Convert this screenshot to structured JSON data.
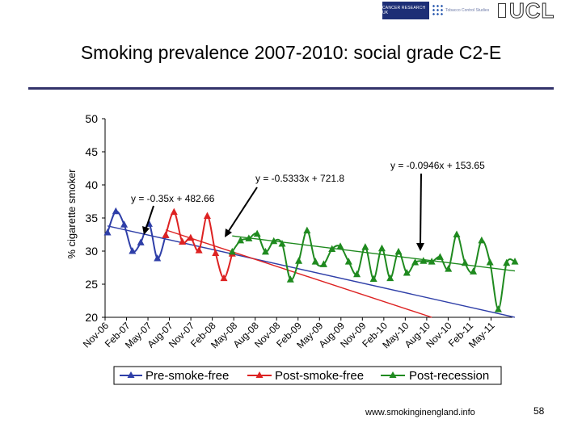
{
  "header": {
    "logos": [
      {
        "name": "cancer-research-uk-logo",
        "text": "CANCER RESEARCH UK"
      },
      {
        "name": "tobacco-control-studies-logo",
        "text": "Tobacco Control Studies"
      },
      {
        "name": "ucl-logo",
        "text": "UCL"
      }
    ],
    "title": "Smoking prevalence 2007-2010: social grade C2-E",
    "rule_color": "#33336b"
  },
  "footer": {
    "url": "www.smokinginengland.info",
    "page_number": "58"
  },
  "colors": {
    "pre": "#2f3fa8",
    "post": "#dd2222",
    "recession": "#1f8a1f"
  },
  "chart_data": {
    "type": "line",
    "ylabel": "% cigarette smoker",
    "xlabel": "",
    "ylim": [
      20,
      50
    ],
    "yticks": [
      20,
      25,
      30,
      35,
      40,
      45,
      50
    ],
    "grid": false,
    "legend_position": "bottom",
    "x_tick_labels": [
      "Nov-06",
      "Feb-07",
      "May-07",
      "Aug-07",
      "Nov-07",
      "Feb-08",
      "May-08",
      "Aug-08",
      "Nov-08",
      "Feb-09",
      "May-09",
      "Aug-09",
      "Nov-09",
      "Feb-10",
      "May-10",
      "Aug-10",
      "Nov-10",
      "Feb-11",
      "May-11"
    ],
    "series": [
      {
        "name": "Pre-smoke-free",
        "key": "pre",
        "start_index": 0,
        "values": [
          32.8,
          36.0,
          34.0,
          30.0,
          31.3,
          34.1,
          28.9,
          32.4
        ]
      },
      {
        "name": "Post-smoke-free",
        "key": "post",
        "start_index": 7,
        "values": [
          32.4,
          35.9,
          31.4,
          32.0,
          30.1,
          35.3,
          29.7,
          25.9,
          29.6
        ]
      },
      {
        "name": "Post-recession",
        "key": "recession",
        "start_index": 15,
        "values": [
          29.9,
          31.6,
          31.9,
          32.6,
          29.9,
          31.5,
          31.1,
          25.7,
          28.5,
          33.1,
          28.4,
          28.0,
          30.3,
          30.7,
          28.4,
          26.5,
          30.6,
          25.8,
          30.4,
          25.9,
          29.9,
          26.7,
          28.3,
          28.5,
          28.4,
          29.1,
          27.3,
          32.5,
          28.2,
          26.9,
          31.6,
          28.3,
          21.2,
          28.2,
          28.4
        ]
      }
    ],
    "trendlines": [
      {
        "key": "pre",
        "label": "y = -0.35x + 482.66",
        "y_start": 33.8,
        "y_end": 20.0,
        "x_start_index": 0,
        "x_end_index": 49
      },
      {
        "key": "post",
        "label": "y = -0.5333x + 721.8",
        "y_start": 33.2,
        "y_end": 20.0,
        "x_start_index": 7,
        "x_end_index": 39
      },
      {
        "key": "recession",
        "label": "y = -0.0946x + 153.65",
        "y_start": 32.3,
        "y_end": 27.0,
        "x_start_index": 15,
        "x_end_index": 49
      }
    ]
  }
}
